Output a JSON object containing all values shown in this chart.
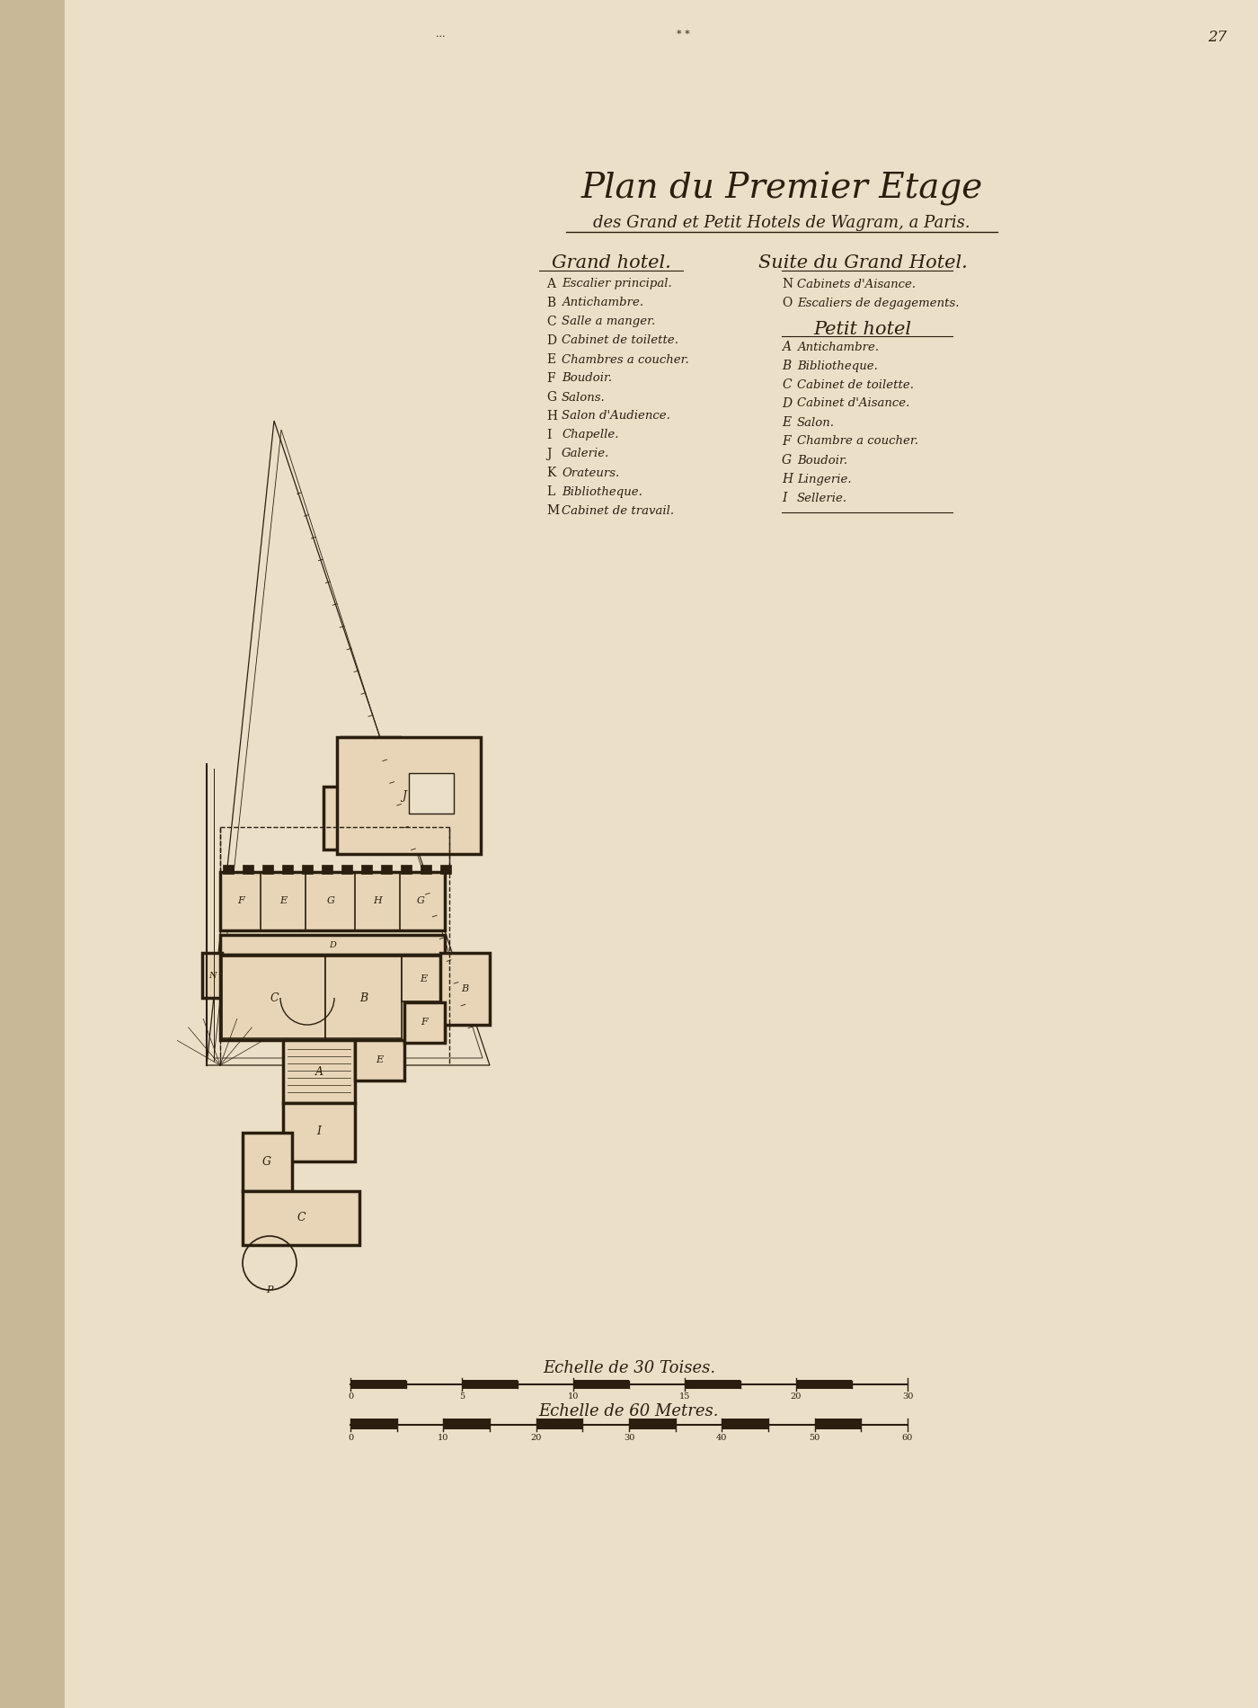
{
  "bg_color": "#ecdfc8",
  "left_strip_color": "#d8c8a8",
  "ink_color": "#2a1f0e",
  "title_line1": "Plan du Premier Etage",
  "title_line2": "des Grand et Petit Hotels de Wagram, a Paris.",
  "col1_header": "Grand hotel.",
  "col2_header": "Suite du Grand Hotel.",
  "col3_header": "Petit hotel",
  "grand_hotel_items": [
    [
      "A",
      "Escalier principal."
    ],
    [
      "B",
      "Antichambre."
    ],
    [
      "C",
      "Salle a manger."
    ],
    [
      "D",
      "Cabinet de toilette."
    ],
    [
      "E",
      "Chambres a coucher."
    ],
    [
      "F",
      "Boudoir."
    ],
    [
      "G",
      "Salons."
    ],
    [
      "H",
      "Salon d'Audience."
    ],
    [
      "I",
      "Chapelle."
    ],
    [
      "J",
      "Galerie."
    ],
    [
      "K",
      "Orateurs."
    ],
    [
      "L",
      "Bibliotheque."
    ],
    [
      "M",
      "Cabinet de travail."
    ]
  ],
  "suite_items": [
    [
      "N",
      "Cabinets d'Aisance."
    ],
    [
      "O",
      "Escaliers de degagements."
    ]
  ],
  "petit_hotel_items": [
    [
      "A",
      "Antichambre."
    ],
    [
      "B",
      "Bibliotheque."
    ],
    [
      "C",
      "Cabinet de toilette."
    ],
    [
      "D",
      "Cabinet d'Aisance."
    ],
    [
      "E",
      "Salon."
    ],
    [
      "F",
      "Chambre a coucher."
    ],
    [
      "G",
      "Boudoir."
    ],
    [
      "H",
      "Lingerie."
    ],
    [
      "I",
      "Sellerie."
    ]
  ],
  "scale_text1": "Echelle de 30 Toises.",
  "scale_text2": "Echelle de 60 Metres.",
  "page_number": "27"
}
